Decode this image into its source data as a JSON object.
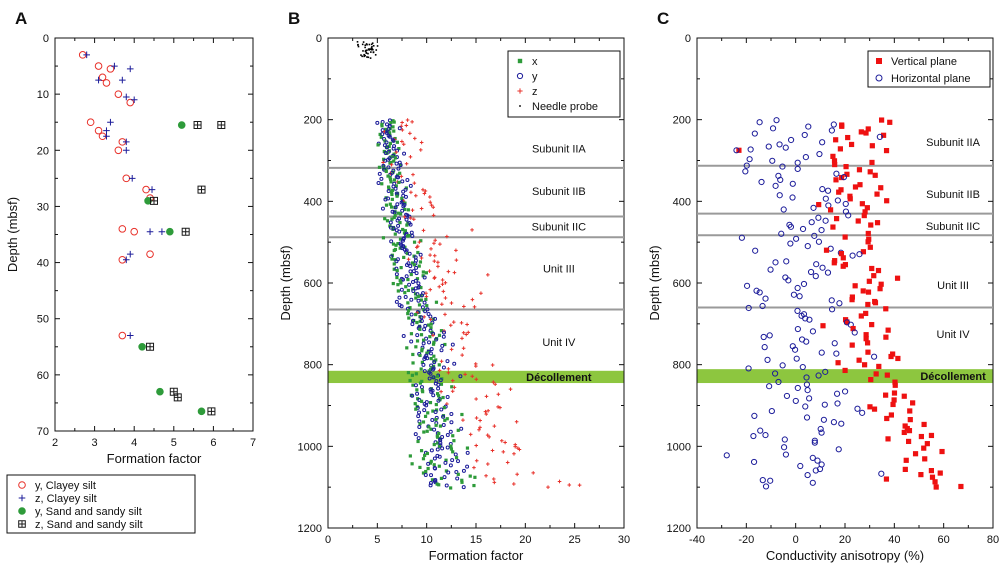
{
  "chart_data": [
    {
      "type": "scatter",
      "panel_label": "A",
      "xlabel": "Formation factor",
      "ylabel": "Depth (mbsf)",
      "xlim": [
        2,
        7
      ],
      "ylim": [
        0,
        70
      ],
      "y_inverted": true,
      "x_ticks": [
        "2",
        "3",
        "4",
        "5",
        "6",
        "7"
      ],
      "y_ticks": [
        "0",
        "10",
        "20",
        "30",
        "40",
        "50",
        "60",
        "70"
      ],
      "legend_position": "below",
      "series": [
        {
          "name": "y, Clayey silt",
          "marker": "open-circle",
          "color": "#e8312a",
          "points": [
            [
              2.7,
              3
            ],
            [
              3.1,
              5
            ],
            [
              3.4,
              5.5
            ],
            [
              3.2,
              7
            ],
            [
              3.3,
              8
            ],
            [
              3.6,
              10
            ],
            [
              3.9,
              11.5
            ],
            [
              2.9,
              15
            ],
            [
              3.1,
              16.5
            ],
            [
              3.2,
              17.5
            ],
            [
              3.7,
              18.5
            ],
            [
              3.6,
              20
            ],
            [
              3.8,
              25
            ],
            [
              4.3,
              27
            ],
            [
              4.4,
              28.5
            ],
            [
              3.7,
              34
            ],
            [
              4.0,
              34.5
            ],
            [
              4.4,
              38.5
            ],
            [
              3.7,
              39.5
            ],
            [
              3.7,
              53
            ]
          ]
        },
        {
          "name": "z, Clayey silt",
          "marker": "plus",
          "color": "#1c1c9a",
          "points": [
            [
              2.8,
              3
            ],
            [
              3.5,
              5
            ],
            [
              3.9,
              5.5
            ],
            [
              3.1,
              7.5
            ],
            [
              3.7,
              7.5
            ],
            [
              3.8,
              10.5
            ],
            [
              4.0,
              11
            ],
            [
              3.4,
              15
            ],
            [
              3.3,
              16.5
            ],
            [
              3.3,
              17.5
            ],
            [
              3.8,
              18.5
            ],
            [
              3.8,
              20
            ],
            [
              3.95,
              25
            ],
            [
              4.45,
              27
            ],
            [
              4.4,
              34.5
            ],
            [
              4.7,
              34.5
            ],
            [
              3.9,
              38.5
            ],
            [
              3.8,
              39.5
            ],
            [
              3.9,
              53
            ]
          ]
        },
        {
          "name": "y, Sand and sandy silt",
          "marker": "filled-circle",
          "color": "#2e9b3a",
          "points": [
            [
              5.2,
              15.5
            ],
            [
              4.35,
              29
            ],
            [
              4.9,
              34.5
            ],
            [
              4.2,
              55
            ],
            [
              4.65,
              63
            ],
            [
              5.7,
              66.5
            ]
          ]
        },
        {
          "name": "z, Sand and sandy silt",
          "marker": "boxed-plus",
          "color": "#1a1a1a",
          "points": [
            [
              5.6,
              15.5
            ],
            [
              6.2,
              15.5
            ],
            [
              5.7,
              27
            ],
            [
              4.5,
              29
            ],
            [
              5.3,
              34.5
            ],
            [
              4.4,
              55
            ],
            [
              5.0,
              63
            ],
            [
              5.1,
              64
            ],
            [
              5.95,
              66.5
            ]
          ]
        }
      ]
    },
    {
      "type": "scatter",
      "panel_label": "B",
      "xlabel": "Formation factor",
      "ylabel": "Depth (mbsf)",
      "xlim": [
        0,
        30
      ],
      "ylim": [
        0,
        1200
      ],
      "y_inverted": true,
      "x_ticks": [
        "0",
        "5",
        "10",
        "15",
        "20",
        "25",
        "30"
      ],
      "y_ticks": [
        "0",
        "200",
        "400",
        "600",
        "800",
        "1000",
        "1200"
      ],
      "legend_position": "top-right",
      "series": [
        {
          "name": "x",
          "marker": "filled-square",
          "color": "#2e9b3a"
        },
        {
          "name": "y",
          "marker": "open-circle",
          "color": "#1c1c9a"
        },
        {
          "name": "z",
          "marker": "plus",
          "color": "#e8312a"
        },
        {
          "name": "Needle probe",
          "marker": "dot",
          "color": "#000000"
        }
      ],
      "trend": {
        "depths": [
          0,
          20,
          50,
          200,
          300,
          400,
          500,
          600,
          700,
          800,
          900,
          1000,
          1100
        ],
        "x_mean": [
          3,
          3.5,
          4,
          5.8,
          6.2,
          6.8,
          7.5,
          8.3,
          9.2,
          10.3,
          10.6,
          11.2,
          12.0
        ],
        "z_mean": [
          3,
          3.5,
          4,
          7.6,
          8.0,
          9.3,
          10.5,
          11.5,
          12.6,
          14.0,
          14.8,
          16.5,
          20.0
        ]
      },
      "horizontal_lines": [
        318,
        437,
        488,
        665
      ],
      "decollement_band": [
        815,
        845
      ],
      "decollement_label": "Décollement",
      "annotations": [
        {
          "text": "Subunit IIA",
          "y": 270
        },
        {
          "text": "Subunit IIB",
          "y": 375
        },
        {
          "text": "Subunit IIC",
          "y": 462
        },
        {
          "text": "Unit III",
          "y": 565
        },
        {
          "text": "Unit IV",
          "y": 745
        }
      ]
    },
    {
      "type": "scatter",
      "panel_label": "C",
      "xlabel": "Conductivity anisotropy (%)",
      "ylabel": "Depth (mbsf)",
      "xlim": [
        -40,
        80
      ],
      "ylim": [
        0,
        1200
      ],
      "y_inverted": true,
      "x_ticks": [
        "-40",
        "-20",
        "0",
        "20",
        "40",
        "60",
        "80"
      ],
      "y_ticks": [
        "0",
        "200",
        "400",
        "600",
        "800",
        "1000",
        "1200"
      ],
      "legend_position": "top-right",
      "series": [
        {
          "name": "Vertical plane",
          "marker": "filled-square",
          "color": "#ee1111"
        },
        {
          "name": "Horizontal plane",
          "marker": "open-circle",
          "color": "#1c1c9a"
        }
      ],
      "trend": {
        "depths": [
          200,
          300,
          400,
          500,
          600,
          700,
          800,
          900,
          1000,
          1100
        ],
        "vertical_mean": [
          27,
          26,
          25,
          24,
          26,
          32,
          30,
          43,
          47,
          52
        ],
        "horizontal_mean": [
          2,
          -2,
          2,
          5,
          0,
          2,
          5,
          10,
          2,
          -2
        ]
      },
      "horizontal_lines": [
        313,
        430,
        483,
        660
      ],
      "decollement_band": [
        811,
        845
      ],
      "decollement_label": "Décollement",
      "annotations": [
        {
          "text": "Subunit IIA",
          "y": 255
        },
        {
          "text": "Subunit IIB",
          "y": 382
        },
        {
          "text": "Subunit IIC",
          "y": 460
        },
        {
          "text": "Unit III",
          "y": 605
        },
        {
          "text": "Unit IV",
          "y": 725
        }
      ]
    }
  ]
}
